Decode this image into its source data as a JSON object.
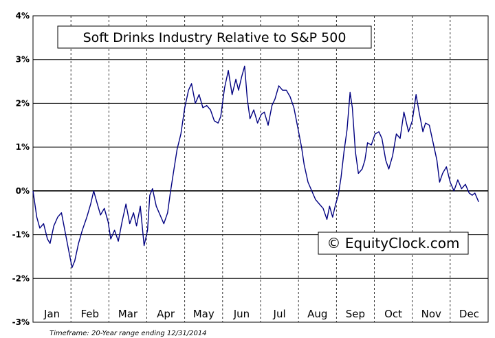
{
  "chart_data": {
    "type": "line",
    "title": "Soft Drinks Industry Relative to S&P 500",
    "xlabel": "",
    "ylabel": "",
    "ylim": [
      -3,
      4
    ],
    "yticks": [
      "4%",
      "3%",
      "2%",
      "1%",
      "0%",
      "-1%",
      "-2%",
      "-3%"
    ],
    "ytick_values": [
      4,
      3,
      2,
      1,
      0,
      -1,
      -2,
      -3
    ],
    "categories": [
      "Jan",
      "Feb",
      "Mar",
      "Apr",
      "May",
      "Jun",
      "Jul",
      "Aug",
      "Sep",
      "Oct",
      "Nov",
      "Dec"
    ],
    "grid": true,
    "line_color": "#000080",
    "series": [
      {
        "name": "",
        "x_unit": "month (fractional, 0 = start of Jan)",
        "points": [
          [
            0.0,
            0.0
          ],
          [
            0.1,
            -0.6
          ],
          [
            0.18,
            -0.85
          ],
          [
            0.28,
            -0.75
          ],
          [
            0.38,
            -1.1
          ],
          [
            0.45,
            -1.2
          ],
          [
            0.55,
            -0.8
          ],
          [
            0.65,
            -0.6
          ],
          [
            0.75,
            -0.5
          ],
          [
            0.85,
            -0.95
          ],
          [
            0.95,
            -1.4
          ],
          [
            1.03,
            -1.75
          ],
          [
            1.1,
            -1.6
          ],
          [
            1.2,
            -1.2
          ],
          [
            1.3,
            -0.9
          ],
          [
            1.42,
            -0.6
          ],
          [
            1.52,
            -0.3
          ],
          [
            1.6,
            0.0
          ],
          [
            1.68,
            -0.25
          ],
          [
            1.78,
            -0.55
          ],
          [
            1.88,
            -0.4
          ],
          [
            1.98,
            -0.7
          ],
          [
            2.05,
            -1.1
          ],
          [
            2.15,
            -0.9
          ],
          [
            2.25,
            -1.15
          ],
          [
            2.35,
            -0.7
          ],
          [
            2.45,
            -0.3
          ],
          [
            2.55,
            -0.75
          ],
          [
            2.65,
            -0.5
          ],
          [
            2.73,
            -0.8
          ],
          [
            2.83,
            -0.35
          ],
          [
            2.93,
            -1.25
          ],
          [
            3.02,
            -0.9
          ],
          [
            3.08,
            -0.1
          ],
          [
            3.15,
            0.05
          ],
          [
            3.25,
            -0.35
          ],
          [
            3.35,
            -0.55
          ],
          [
            3.45,
            -0.75
          ],
          [
            3.55,
            -0.5
          ],
          [
            3.62,
            -0.05
          ],
          [
            3.7,
            0.4
          ],
          [
            3.8,
            0.95
          ],
          [
            3.9,
            1.3
          ],
          [
            4.0,
            1.9
          ],
          [
            4.1,
            2.3
          ],
          [
            4.18,
            2.45
          ],
          [
            4.28,
            2.0
          ],
          [
            4.38,
            2.2
          ],
          [
            4.48,
            1.9
          ],
          [
            4.58,
            1.95
          ],
          [
            4.68,
            1.85
          ],
          [
            4.78,
            1.6
          ],
          [
            4.88,
            1.55
          ],
          [
            4.95,
            1.7
          ],
          [
            5.05,
            2.35
          ],
          [
            5.15,
            2.75
          ],
          [
            5.25,
            2.2
          ],
          [
            5.35,
            2.55
          ],
          [
            5.42,
            2.3
          ],
          [
            5.5,
            2.6
          ],
          [
            5.58,
            2.85
          ],
          [
            5.65,
            2.1
          ],
          [
            5.72,
            1.65
          ],
          [
            5.82,
            1.85
          ],
          [
            5.92,
            1.55
          ],
          [
            6.02,
            1.75
          ],
          [
            6.1,
            1.8
          ],
          [
            6.2,
            1.5
          ],
          [
            6.3,
            1.95
          ],
          [
            6.38,
            2.1
          ],
          [
            6.48,
            2.4
          ],
          [
            6.58,
            2.3
          ],
          [
            6.68,
            2.3
          ],
          [
            6.78,
            2.15
          ],
          [
            6.88,
            1.9
          ],
          [
            6.98,
            1.45
          ],
          [
            7.08,
            1.0
          ],
          [
            7.15,
            0.6
          ],
          [
            7.25,
            0.2
          ],
          [
            7.35,
            0.0
          ],
          [
            7.45,
            -0.2
          ],
          [
            7.55,
            -0.3
          ],
          [
            7.65,
            -0.4
          ],
          [
            7.75,
            -0.65
          ],
          [
            7.82,
            -0.35
          ],
          [
            7.9,
            -0.6
          ],
          [
            7.98,
            -0.3
          ],
          [
            8.05,
            -0.1
          ],
          [
            8.12,
            0.3
          ],
          [
            8.2,
            0.9
          ],
          [
            8.28,
            1.4
          ],
          [
            8.36,
            2.25
          ],
          [
            8.42,
            1.9
          ],
          [
            8.5,
            0.9
          ],
          [
            8.58,
            0.4
          ],
          [
            8.68,
            0.5
          ],
          [
            8.75,
            0.7
          ],
          [
            8.82,
            1.1
          ],
          [
            8.92,
            1.05
          ],
          [
            9.02,
            1.3
          ],
          [
            9.12,
            1.35
          ],
          [
            9.2,
            1.2
          ],
          [
            9.3,
            0.7
          ],
          [
            9.38,
            0.5
          ],
          [
            9.48,
            0.8
          ],
          [
            9.58,
            1.3
          ],
          [
            9.68,
            1.2
          ],
          [
            9.78,
            1.8
          ],
          [
            9.9,
            1.35
          ],
          [
            10.0,
            1.6
          ],
          [
            10.1,
            2.2
          ],
          [
            10.18,
            1.8
          ],
          [
            10.28,
            1.35
          ],
          [
            10.35,
            1.55
          ],
          [
            10.45,
            1.5
          ],
          [
            10.55,
            1.1
          ],
          [
            10.65,
            0.7
          ],
          [
            10.72,
            0.2
          ],
          [
            10.8,
            0.4
          ],
          [
            10.9,
            0.55
          ],
          [
            11.0,
            0.2
          ],
          [
            11.1,
            0.0
          ],
          [
            11.2,
            0.25
          ],
          [
            11.3,
            0.05
          ],
          [
            11.4,
            0.15
          ],
          [
            11.5,
            -0.05
          ],
          [
            11.58,
            -0.1
          ],
          [
            11.65,
            -0.05
          ],
          [
            11.75,
            -0.25
          ]
        ]
      }
    ]
  },
  "watermark": "© EquityClock.com",
  "footnote": "Timeframe: 20-Year range ending 12/31/2014"
}
